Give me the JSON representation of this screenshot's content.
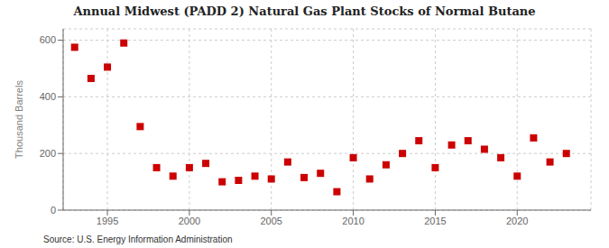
{
  "chart_data": {
    "type": "scatter",
    "title": "Annual Midwest (PADD 2) Natural Gas Plant Stocks of Normal Butane",
    "ylabel": "Thousand Barrels",
    "annotation": "Source: U.S. Energy Information Administration",
    "x": [
      1993,
      1994,
      1995,
      1996,
      1997,
      1998,
      1999,
      2000,
      2001,
      2002,
      2003,
      2004,
      2005,
      2006,
      2007,
      2008,
      2009,
      2010,
      2011,
      2012,
      2013,
      2014,
      2015,
      2016,
      2017,
      2018,
      2019,
      2020,
      2021,
      2022,
      2023
    ],
    "values": [
      575,
      465,
      505,
      590,
      295,
      150,
      120,
      150,
      165,
      100,
      105,
      120,
      110,
      170,
      115,
      130,
      65,
      185,
      110,
      160,
      200,
      245,
      150,
      230,
      245,
      215,
      185,
      120,
      255,
      170,
      200
    ],
    "color": "#cc0000",
    "marker": "square",
    "xlim": [
      1992.3,
      2024.5
    ],
    "xticks": [
      1995,
      2000,
      2005,
      2010,
      2015,
      2020
    ],
    "ylim": [
      0,
      640
    ],
    "yticks": [
      0,
      200,
      400,
      600
    ],
    "grid": true
  }
}
